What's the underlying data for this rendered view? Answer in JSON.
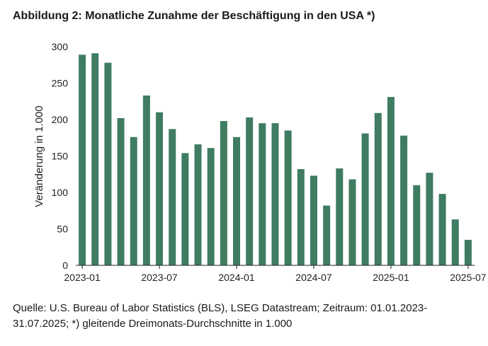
{
  "title": "Abbildung 2: Monatliche Zunahme der Beschäftigung in den USA *)",
  "source_line1": "Quelle: U.S. Bureau of Labor Statistics (BLS), LSEG Datastream; Zeitraum: 01.01.2023-",
  "source_line2": "31.07.2025; *) gleitende Dreimonats-Durchschnitte in 1.000",
  "colors": {
    "bar": "#3f7c62",
    "axis": "#222222"
  },
  "chart_data": {
    "type": "bar",
    "ylabel": "Veränderung in 1.000",
    "ylim": [
      0,
      300
    ],
    "yticks": [
      0,
      50,
      100,
      150,
      200,
      250,
      300
    ],
    "grid": false,
    "categories": [
      "2023-01",
      "2023-02",
      "2023-03",
      "2023-04",
      "2023-05",
      "2023-06",
      "2023-07",
      "2023-08",
      "2023-09",
      "2023-10",
      "2023-11",
      "2023-12",
      "2024-01",
      "2024-02",
      "2024-03",
      "2024-04",
      "2024-05",
      "2024-06",
      "2024-07",
      "2024-08",
      "2024-09",
      "2024-10",
      "2024-11",
      "2024-12",
      "2025-01",
      "2025-02",
      "2025-03",
      "2025-04",
      "2025-05",
      "2025-06",
      "2025-07"
    ],
    "xtick_labels": [
      "2023-01",
      "2023-07",
      "2024-01",
      "2024-07",
      "2025-01",
      "2025-07"
    ],
    "values": [
      289,
      291,
      278,
      202,
      176,
      233,
      210,
      187,
      154,
      166,
      161,
      198,
      176,
      203,
      195,
      195,
      185,
      132,
      123,
      82,
      133,
      118,
      181,
      209,
      231,
      178,
      110,
      127,
      98,
      63,
      35
    ]
  }
}
